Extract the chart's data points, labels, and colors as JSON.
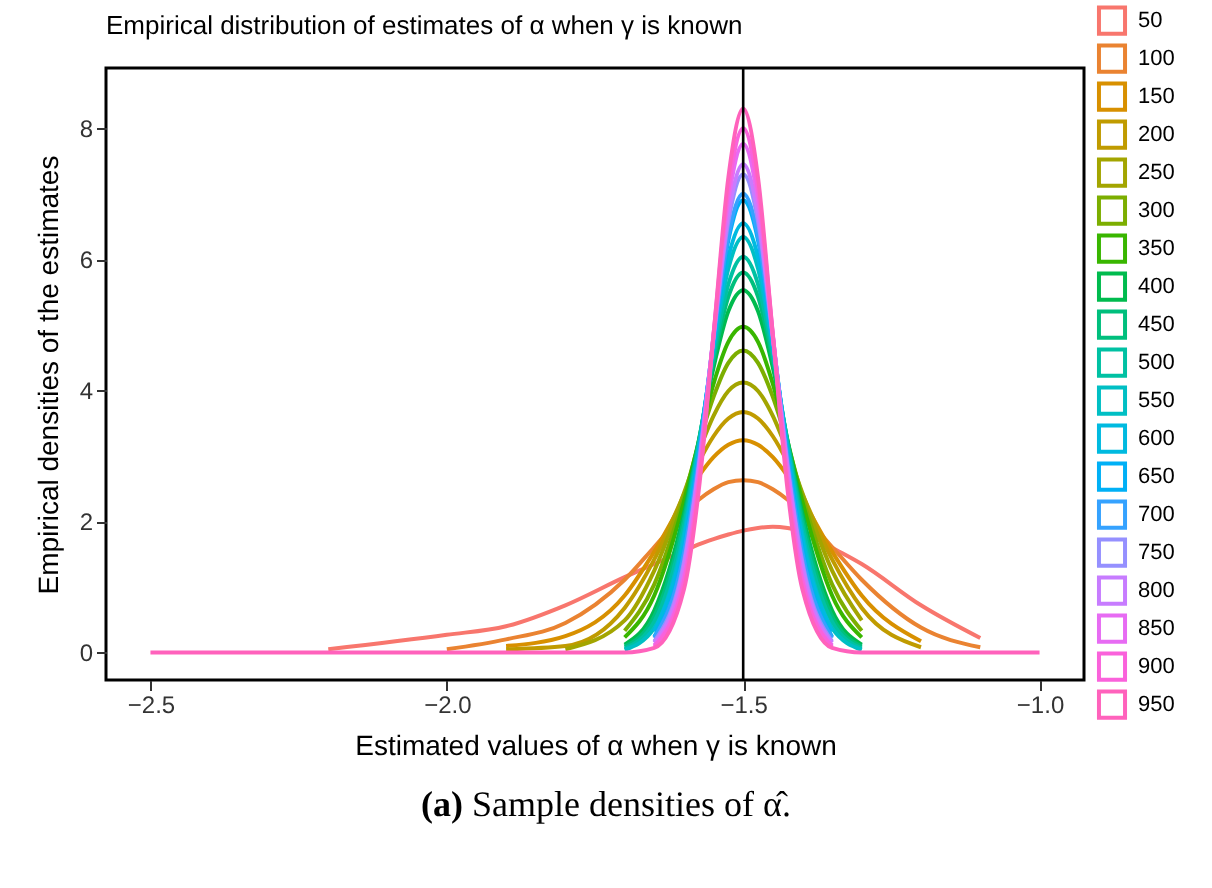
{
  "chart_data": {
    "type": "line",
    "title": "Empirical distribution of estimates of α when γ is known",
    "xlabel": "Estimated values of α when γ is known",
    "ylabel": "Empirical densities of the estimates",
    "x": [
      -2.5,
      -2.2,
      -2.0,
      -1.9,
      -1.8,
      -1.7,
      -1.65,
      -1.6,
      -1.575,
      -1.55,
      -1.525,
      -1.5,
      -1.475,
      -1.45,
      -1.425,
      -1.4,
      -1.35,
      -1.3,
      -1.2,
      -1.1,
      -1.0
    ],
    "series": [
      {
        "name": "50",
        "color": "#f8766d",
        "values": [
          null,
          0.05,
          0.27,
          0.4,
          0.72,
          1.15,
          1.35,
          1.55,
          1.65,
          1.73,
          1.8,
          1.86,
          1.9,
          1.92,
          1.9,
          1.85,
          1.6,
          1.35,
          0.72,
          0.22,
          null
        ]
      },
      {
        "name": "100",
        "color": "#ea8331",
        "values": [
          null,
          null,
          0.05,
          0.2,
          0.45,
          1.11,
          1.61,
          2.12,
          2.33,
          2.49,
          2.6,
          2.63,
          2.6,
          2.49,
          2.33,
          2.12,
          1.61,
          1.11,
          0.38,
          0.08,
          null
        ]
      },
      {
        "name": "150",
        "color": "#d89000",
        "values": [
          null,
          null,
          null,
          0.1,
          0.25,
          0.87,
          1.54,
          2.33,
          2.69,
          2.98,
          3.17,
          3.24,
          3.17,
          2.98,
          2.69,
          2.33,
          1.54,
          0.87,
          0.17,
          null,
          null
        ]
      },
      {
        "name": "200",
        "color": "#c09b00",
        "values": [
          null,
          null,
          null,
          0.05,
          0.1,
          0.68,
          1.42,
          2.41,
          2.9,
          3.3,
          3.57,
          3.67,
          3.57,
          3.3,
          2.9,
          2.41,
          1.42,
          0.68,
          0.08,
          null,
          null
        ]
      },
      {
        "name": "250",
        "color": "#a3a500",
        "values": [
          null,
          null,
          null,
          null,
          0.05,
          0.49,
          1.25,
          2.43,
          3.06,
          3.61,
          3.99,
          4.12,
          3.99,
          3.61,
          3.06,
          2.43,
          1.25,
          0.49,
          null,
          null,
          null
        ]
      },
      {
        "name": "300",
        "color": "#7cae00",
        "values": [
          null,
          null,
          null,
          null,
          null,
          0.33,
          1.04,
          2.37,
          3.18,
          3.9,
          4.42,
          4.61,
          4.42,
          3.9,
          3.18,
          2.37,
          1.04,
          0.33,
          null,
          null,
          null
        ]
      },
      {
        "name": "350",
        "color": "#39b600",
        "values": [
          null,
          null,
          null,
          null,
          null,
          0.23,
          0.87,
          2.3,
          3.22,
          4.1,
          4.74,
          4.97,
          4.74,
          4.1,
          3.22,
          2.3,
          0.87,
          0.23,
          null,
          null,
          null
        ]
      },
      {
        "name": "400",
        "color": "#00bb4e",
        "values": [
          null,
          null,
          null,
          null,
          null,
          0.12,
          0.64,
          2.12,
          3.23,
          4.35,
          5.21,
          5.53,
          5.21,
          4.35,
          3.23,
          2.12,
          0.64,
          0.12,
          null,
          null,
          null
        ]
      },
      {
        "name": "450",
        "color": "#00bf7d",
        "values": [
          null,
          null,
          null,
          null,
          null,
          0.09,
          0.55,
          2.03,
          3.21,
          4.46,
          5.43,
          5.8,
          5.43,
          4.46,
          3.21,
          2.03,
          0.55,
          0.09,
          null,
          null,
          null
        ]
      },
      {
        "name": "500",
        "color": "#00c1a3",
        "values": [
          null,
          null,
          null,
          null,
          null,
          0.06,
          0.47,
          1.93,
          3.18,
          4.54,
          5.62,
          6.04,
          5.62,
          4.54,
          3.18,
          1.93,
          0.47,
          0.06,
          null,
          null,
          null
        ]
      },
      {
        "name": "550",
        "color": "#00bfc4",
        "values": [
          null,
          null,
          null,
          null,
          null,
          0.04,
          0.37,
          1.81,
          3.13,
          4.63,
          5.86,
          6.34,
          5.86,
          4.63,
          3.13,
          1.81,
          0.37,
          0.04,
          null,
          null,
          null
        ]
      },
      {
        "name": "600",
        "color": "#00bae0",
        "values": [
          null,
          null,
          null,
          null,
          null,
          null,
          0.32,
          1.72,
          3.08,
          4.68,
          6.03,
          6.55,
          6.03,
          4.68,
          3.08,
          1.72,
          0.32,
          null,
          null,
          null,
          null
        ]
      },
      {
        "name": "650",
        "color": "#00b0f6",
        "values": [
          null,
          null,
          null,
          null,
          null,
          null,
          0.24,
          1.56,
          2.99,
          4.76,
          6.29,
          6.9,
          6.29,
          4.76,
          2.99,
          1.56,
          0.24,
          null,
          null,
          null,
          null
        ]
      },
      {
        "name": "700",
        "color": "#35a2ff",
        "values": [
          null,
          null,
          null,
          null,
          null,
          null,
          0.22,
          1.51,
          2.95,
          4.77,
          6.36,
          7.0,
          6.36,
          4.77,
          2.95,
          1.51,
          0.22,
          null,
          null,
          null,
          null
        ]
      },
      {
        "name": "750",
        "color": "#9590ff",
        "values": [
          null,
          null,
          null,
          null,
          null,
          null,
          0.17,
          1.38,
          2.85,
          4.81,
          6.58,
          7.3,
          6.58,
          4.81,
          2.85,
          1.38,
          0.17,
          null,
          null,
          null,
          null
        ]
      },
      {
        "name": "800",
        "color": "#c77cff",
        "values": [
          null,
          null,
          null,
          null,
          null,
          null,
          0.15,
          1.32,
          2.81,
          4.83,
          6.68,
          7.45,
          6.68,
          4.83,
          2.81,
          1.32,
          0.15,
          null,
          null,
          null,
          null
        ]
      },
      {
        "name": "850",
        "color": "#e76bf3",
        "values": [
          null,
          null,
          null,
          null,
          null,
          null,
          0.11,
          1.17,
          2.68,
          4.84,
          6.9,
          7.76,
          6.9,
          4.84,
          2.68,
          1.17,
          0.11,
          null,
          null,
          null,
          null
        ]
      },
      {
        "name": "900",
        "color": "#fa62db",
        "values": [
          null,
          null,
          null,
          null,
          null,
          null,
          0.09,
          1.08,
          2.6,
          4.86,
          7.06,
          8.0,
          7.06,
          4.86,
          2.6,
          1.08,
          0.09,
          null,
          null,
          null,
          null
        ]
      },
      {
        "name": "950",
        "color": "#ff62bc",
        "values": [
          0,
          0,
          0,
          0,
          0,
          0,
          0.07,
          0.96,
          2.47,
          4.85,
          7.25,
          8.3,
          7.25,
          4.85,
          2.47,
          0.96,
          0.07,
          0,
          0,
          0,
          0
        ]
      }
    ],
    "xlim": [
      -2.575,
      -0.925
    ],
    "ylim": [
      -0.42,
      8.92
    ],
    "xticks": [
      {
        "value": -2.5,
        "label": "−2.5"
      },
      {
        "value": -2.0,
        "label": "−2.0"
      },
      {
        "value": -1.5,
        "label": "−1.5"
      },
      {
        "value": -1.0,
        "label": "−1.0"
      }
    ],
    "yticks": [
      0,
      2,
      4,
      6,
      8
    ],
    "ref_lines": [
      {
        "axis": "x",
        "value": -1.5,
        "color": "#000000"
      }
    ],
    "legend": "right",
    "annotations": [
      "(a) Sample densities of α̂."
    ]
  }
}
